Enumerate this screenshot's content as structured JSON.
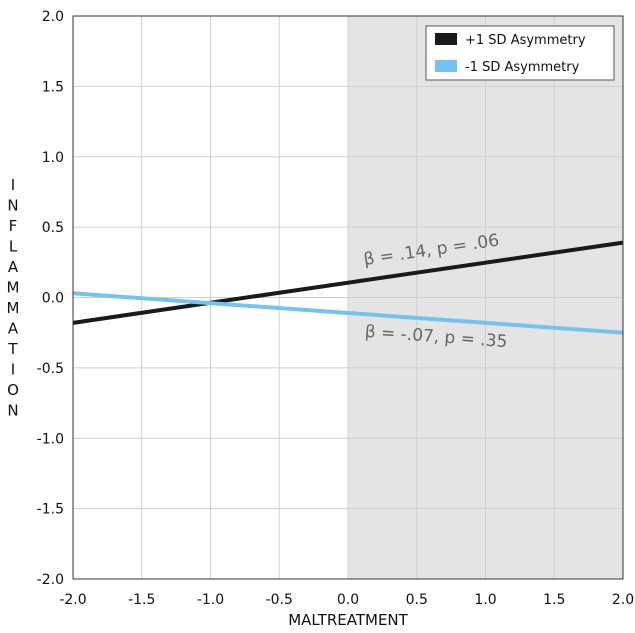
{
  "chart_data": {
    "type": "line",
    "title": "",
    "xlabel": "MALTREATMENT",
    "ylabel": "INFLAMMATION",
    "xlim": [
      -2.0,
      2.0
    ],
    "ylim": [
      -2.0,
      2.0
    ],
    "x_ticks": [
      "-2.0",
      "-1.5",
      "-1.0",
      "-0.5",
      "0.0",
      "0.5",
      "1.0",
      "1.5",
      "2.0"
    ],
    "y_ticks": [
      "2.0",
      "1.5",
      "1.0",
      "0.5",
      "0.0",
      "-0.5",
      "-1.0",
      "-1.5",
      "-2.0"
    ],
    "grid": true,
    "shaded_region": {
      "x_from": 0.0,
      "x_to": 2.0,
      "color": "#e4e4e4"
    },
    "legend_position": "top-right",
    "series": [
      {
        "name": "+1 SD Asymmetry",
        "color": "#1a1a1a",
        "x": [
          -2.0,
          2.0
        ],
        "y": [
          -0.18,
          0.39
        ],
        "annotation": {
          "text": "β = .14, p = .06",
          "x": 0.12,
          "y": 0.23
        }
      },
      {
        "name": "-1 SD Asymmetry",
        "color": "#74c3ef",
        "x": [
          -2.0,
          2.0
        ],
        "y": [
          0.03,
          -0.25
        ],
        "annotation": {
          "text": "β = -.07, p = .35",
          "x": 0.12,
          "y": -0.28
        }
      }
    ]
  }
}
